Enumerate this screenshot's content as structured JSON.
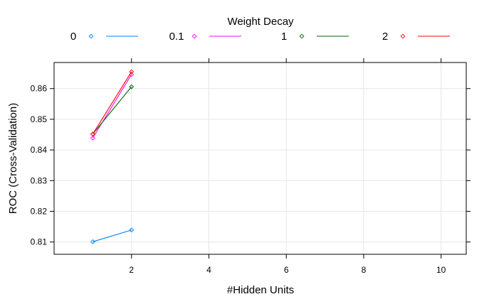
{
  "chart_data": {
    "type": "line",
    "title": "",
    "xlabel": "#Hidden Units",
    "ylabel": "ROC (Cross-Validation)",
    "xlim": [
      0.0,
      10.65
    ],
    "ylim": [
      0.806,
      0.8685
    ],
    "xticks": [
      2,
      4,
      6,
      8,
      10
    ],
    "yticks": [
      0.81,
      0.82,
      0.83,
      0.84,
      0.85,
      0.86
    ],
    "grid": true,
    "legend": {
      "title": "Weight Decay",
      "placement": "top"
    },
    "series": [
      {
        "name": "0",
        "color": "#0080ff",
        "x": [
          1,
          2
        ],
        "y": [
          0.8101,
          0.8139
        ]
      },
      {
        "name": "0.1",
        "color": "#ff00ff",
        "x": [
          1,
          2
        ],
        "y": [
          0.8439,
          0.8646
        ]
      },
      {
        "name": "1",
        "color": "#006400",
        "x": [
          1,
          2
        ],
        "y": [
          0.8452,
          0.8606
        ]
      },
      {
        "name": "2",
        "color": "#ff0000",
        "x": [
          1,
          2
        ],
        "y": [
          0.8452,
          0.8655
        ]
      }
    ]
  }
}
